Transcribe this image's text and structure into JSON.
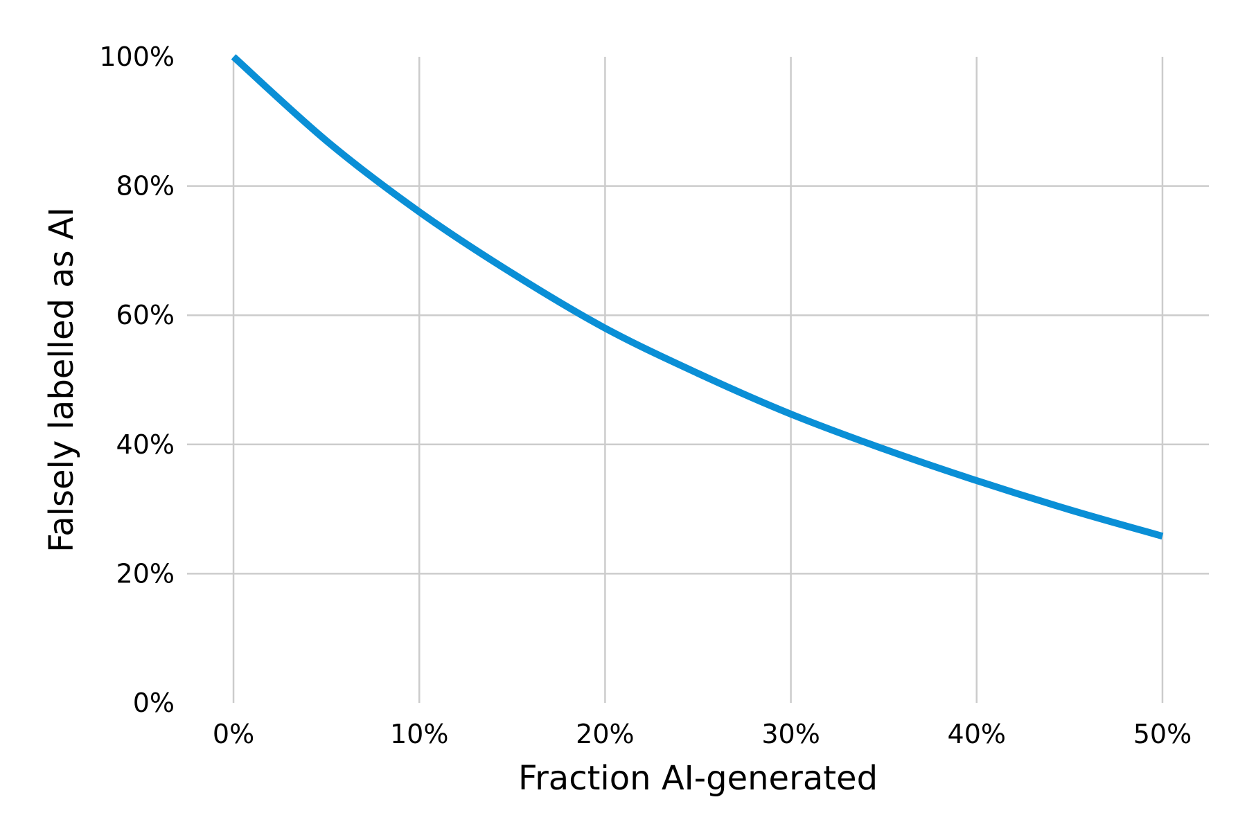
{
  "chart_data": {
    "type": "line",
    "xlabel": "Fraction AI-generated",
    "ylabel": "Falsely labelled as AI",
    "xlim": [
      -0.025,
      0.525
    ],
    "ylim": [
      0,
      1
    ],
    "x_ticks": [
      {
        "value": 0.0,
        "label": "0%"
      },
      {
        "value": 0.1,
        "label": "10%"
      },
      {
        "value": 0.2,
        "label": "20%"
      },
      {
        "value": 0.3,
        "label": "30%"
      },
      {
        "value": 0.4,
        "label": "40%"
      },
      {
        "value": 0.5,
        "label": "50%"
      }
    ],
    "y_ticks": [
      {
        "value": 0.0,
        "label": "0%"
      },
      {
        "value": 0.2,
        "label": "20%"
      },
      {
        "value": 0.4,
        "label": "40%"
      },
      {
        "value": 0.6,
        "label": "60%"
      },
      {
        "value": 0.8,
        "label": "80%"
      },
      {
        "value": 1.0,
        "label": "100%"
      }
    ],
    "grid": true,
    "legend": "none",
    "series": [
      {
        "color": "#0a8fd6",
        "x": [
          0.0,
          0.05,
          0.1,
          0.15,
          0.2,
          0.25,
          0.3,
          0.35,
          0.4,
          0.45,
          0.5
        ],
        "y": [
          1.0,
          0.87,
          0.76,
          0.665,
          0.58,
          0.51,
          0.447,
          0.393,
          0.344,
          0.299,
          0.258
        ]
      }
    ]
  }
}
